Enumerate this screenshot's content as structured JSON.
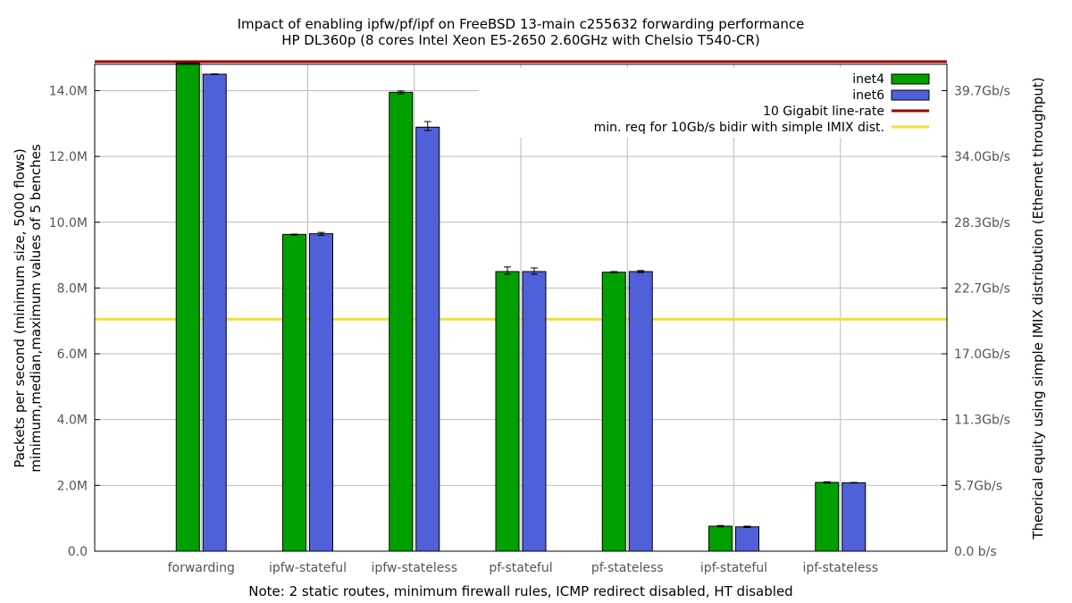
{
  "chart_data": {
    "type": "bar",
    "title": "Impact of enabling ipfw/pf/ipf on FreeBSD 13-main c255632 forwarding performance",
    "subtitle": "HP DL360p (8 cores Intel Xeon E5-2650 2.60GHz with Chelsio T540-CR)",
    "ylabel_line1": "Packets per second (minimum size, 5000 flows)",
    "ylabel_line2": "minimum,median,maximum values of 5 benches",
    "y2label": "Theorical equity using simple IMIX distribution (Ethernet throughput)",
    "xlabel": "Note: 2 static routes, minimum firewall rules, ICMP redirect disabled, HT disabled",
    "ylim": [
      0,
      14800000
    ],
    "grid": true,
    "legend_position": "top-right",
    "categories": [
      "forwarding",
      "ipfw-stateful",
      "ipfw-stateless",
      "pf-stateful",
      "pf-stateless",
      "ipf-stateful",
      "ipf-stateless"
    ],
    "series": [
      {
        "name": "inet4",
        "color": "#00a000",
        "values": [
          14830000,
          9630000,
          13950000,
          8500000,
          8480000,
          760000,
          2090000
        ],
        "min": [
          14810000,
          9610000,
          13900000,
          8420000,
          8460000,
          740000,
          2070000
        ],
        "max": [
          14840000,
          9640000,
          13990000,
          8640000,
          8500000,
          780000,
          2110000
        ]
      },
      {
        "name": "inet6",
        "color": "#5060d8",
        "values": [
          14500000,
          9650000,
          12890000,
          8500000,
          8500000,
          740000,
          2080000
        ],
        "min": [
          14490000,
          9600000,
          12790000,
          8420000,
          8470000,
          720000,
          2070000
        ],
        "max": [
          14510000,
          9690000,
          13060000,
          8610000,
          8530000,
          760000,
          2090000
        ]
      }
    ],
    "reference_lines": [
      {
        "name": "10 Gigabit line-rate",
        "value": 14880000,
        "color": "#990000"
      },
      {
        "name": "min. req for 10Gb/s bidir with simple IMIX dist.",
        "value": 7050000,
        "color": "#f0e030"
      }
    ],
    "y_ticks": [
      {
        "value": 0,
        "label": "0.0"
      },
      {
        "value": 2000000,
        "label": "2.0M"
      },
      {
        "value": 4000000,
        "label": "4.0M"
      },
      {
        "value": 6000000,
        "label": "6.0M"
      },
      {
        "value": 8000000,
        "label": "8.0M"
      },
      {
        "value": 10000000,
        "label": "10.0M"
      },
      {
        "value": 12000000,
        "label": "12.0M"
      },
      {
        "value": 14000000,
        "label": "14.0M"
      }
    ],
    "y2_ticks": [
      {
        "value": 0,
        "label": "0.0 b/s"
      },
      {
        "value": 2000000,
        "label": "5.7Gb/s"
      },
      {
        "value": 4000000,
        "label": "11.3Gb/s"
      },
      {
        "value": 6000000,
        "label": "17.0Gb/s"
      },
      {
        "value": 8000000,
        "label": "22.7Gb/s"
      },
      {
        "value": 10000000,
        "label": "28.3Gb/s"
      },
      {
        "value": 12000000,
        "label": "34.0Gb/s"
      },
      {
        "value": 14000000,
        "label": "39.7Gb/s"
      }
    ]
  }
}
